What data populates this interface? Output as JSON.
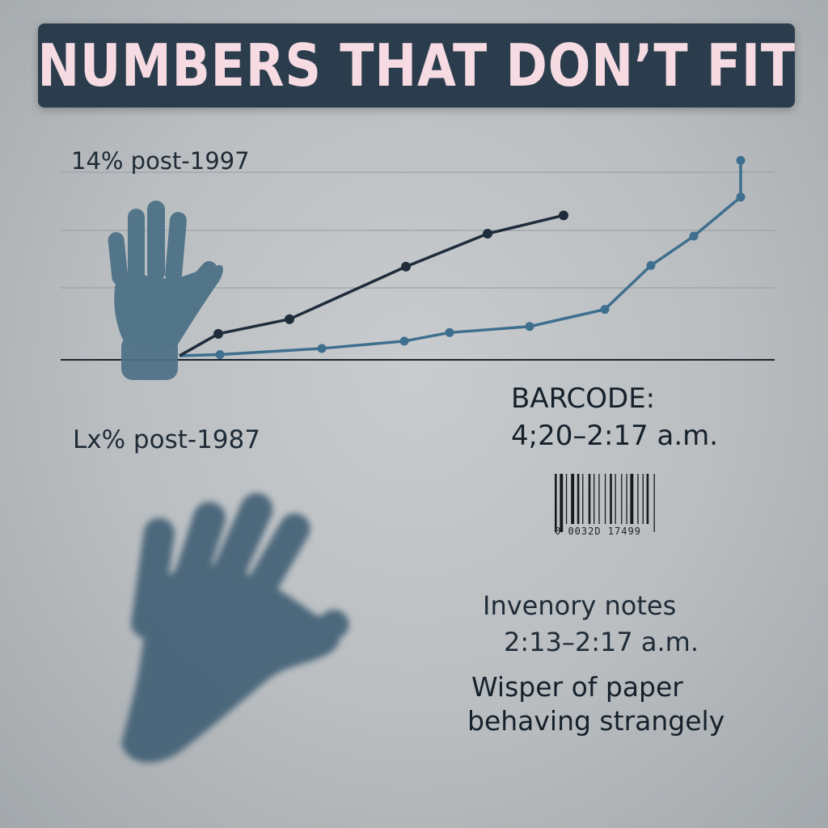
{
  "title": "NUMBERS THAT DON’T FIT",
  "labels": {
    "top": "14% post-1997",
    "middle": "Lx% post-1987"
  },
  "barcode": {
    "heading": "BARCODE:",
    "time": "4;20–2:17 a.m.",
    "digits": "0  0032D  17499"
  },
  "notes": {
    "title": "Invenory notes",
    "time": "2:13–2:17 a.m.",
    "whisper_line1": "Wisper of paper",
    "whisper_line2": "behaving strangely"
  },
  "colors": {
    "banner": "#2b3d4d",
    "title_text": "#f6dbe2",
    "series_dark": "#1f2c3c",
    "series_blue": "#3e6f8e",
    "hand": "#4a6f86"
  },
  "icons": [
    "raised-hand-icon",
    "reaching-hand-icon",
    "barcode-icon"
  ],
  "chart_data": {
    "type": "line",
    "title": "",
    "xlabel": "",
    "ylabel": "",
    "grid": true,
    "series": [
      {
        "points": [
          [
            0,
            0
          ],
          [
            1,
            0.18
          ],
          [
            2,
            0.3
          ],
          [
            3,
            0.73
          ],
          [
            4,
            1.0
          ],
          [
            5,
            1.15
          ]
        ]
      },
      {
        "points": [
          [
            0,
            0
          ],
          [
            1,
            0.01
          ],
          [
            2,
            0.06
          ],
          [
            3,
            0.12
          ],
          [
            4,
            0.19
          ],
          [
            5,
            0.24
          ],
          [
            6,
            0.38
          ],
          [
            7,
            0.74
          ],
          [
            8,
            0.98
          ],
          [
            9,
            1.3
          ],
          [
            10,
            1.6
          ]
        ]
      }
    ]
  }
}
